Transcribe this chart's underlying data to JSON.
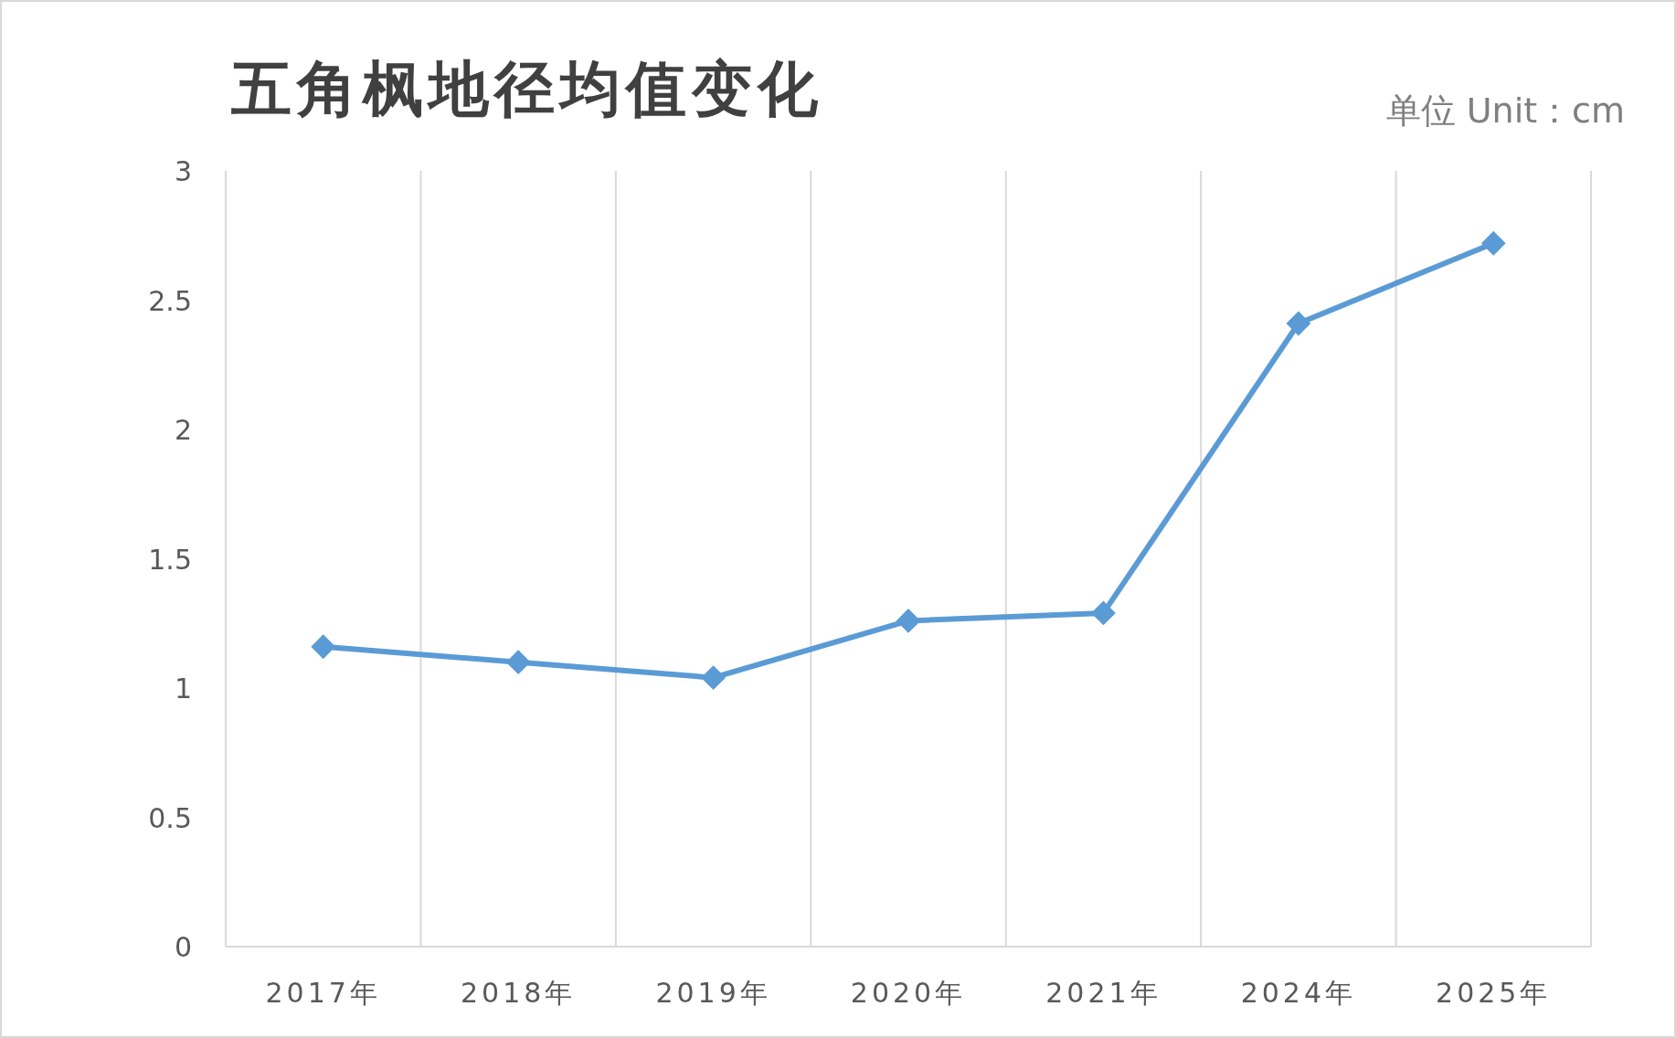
{
  "chart_data": {
    "type": "line",
    "title": "五角枫地径均值变化",
    "annotations": [
      "单位 Unit：cm"
    ],
    "categories": [
      "2017年",
      "2018年",
      "2019年",
      "2020年",
      "2021年",
      "2024年",
      "2025年"
    ],
    "series": [
      {
        "color": "#5b9bd5",
        "values": [
          1.16,
          1.1,
          1.04,
          1.26,
          1.29,
          2.41,
          2.72
        ]
      }
    ],
    "ylim": [
      0,
      3
    ],
    "yticks": [
      0,
      0.5,
      1,
      1.5,
      2,
      2.5,
      3
    ],
    "grid": "x",
    "marker": "diamond",
    "line_style": "solid"
  }
}
